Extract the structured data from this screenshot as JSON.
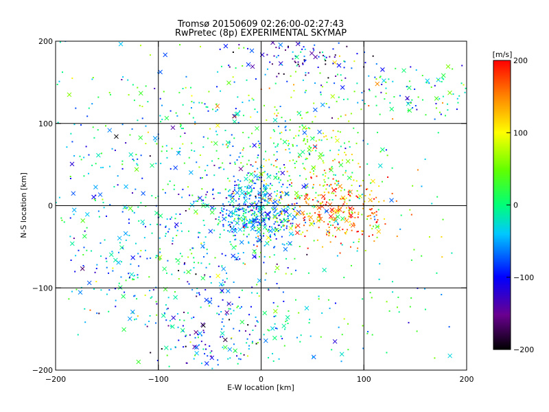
{
  "chart_data": {
    "type": "scatter",
    "title": "Tromsø 20150609 02:26:00-02:27:43",
    "subtitle": "RwPretec (8p) EXPERIMENTAL SKYMAP",
    "xlabel": "E-W location [km]",
    "ylabel": "N-S location [km]",
    "xlim": [
      -200,
      200
    ],
    "ylim": [
      -200,
      200
    ],
    "xticks": [
      -200,
      -100,
      0,
      100,
      200
    ],
    "yticks": [
      -200,
      -100,
      0,
      100,
      200
    ],
    "xtick_labels": [
      "−200",
      "−100",
      "0",
      "100",
      "200"
    ],
    "ytick_labels": [
      "−200",
      "−100",
      "0",
      "100",
      "200"
    ],
    "grid": true,
    "marker_types": [
      "dot",
      "cross"
    ],
    "colorbar": {
      "label": "[m/s]",
      "range": [
        -200,
        200
      ],
      "ticks": [
        -200,
        -100,
        0,
        100,
        200
      ],
      "tick_labels": [
        "−200",
        "−100",
        "0",
        "100",
        "200"
      ],
      "colormap": "rainbow (black–purple–blue–cyan–green–yellow–red)"
    },
    "point_clusters": [
      {
        "cx": -5,
        "cy": -5,
        "sx": 22,
        "sy": 22,
        "velocity_mean": -60,
        "velocity_spread": 45,
        "count": 450
      },
      {
        "cx": 75,
        "cy": -5,
        "sx": 25,
        "sy": 20,
        "velocity_mean": 150,
        "velocity_spread": 50,
        "count": 260
      },
      {
        "cx": 45,
        "cy": 60,
        "sx": 35,
        "sy": 45,
        "velocity_mean": 60,
        "velocity_spread": 60,
        "count": 220
      },
      {
        "cx": -70,
        "cy": 80,
        "sx": 80,
        "sy": 60,
        "velocity_mean": -20,
        "velocity_spread": 60,
        "count": 350
      },
      {
        "cx": -100,
        "cy": -60,
        "sx": 70,
        "sy": 50,
        "velocity_mean": -30,
        "velocity_spread": 50,
        "count": 300
      },
      {
        "cx": -45,
        "cy": -150,
        "sx": 30,
        "sy": 35,
        "velocity_mean": -80,
        "velocity_spread": 60,
        "count": 160
      },
      {
        "cx": 40,
        "cy": 180,
        "sx": 30,
        "sy": 15,
        "velocity_mean": -110,
        "velocity_spread": 60,
        "count": 110
      },
      {
        "cx": 150,
        "cy": 140,
        "sx": 35,
        "sy": 20,
        "velocity_mean": -30,
        "velocity_spread": 60,
        "count": 90
      },
      {
        "cx": 60,
        "cy": -130,
        "sx": 70,
        "sy": 50,
        "velocity_mean": 10,
        "velocity_spread": 50,
        "count": 90
      },
      {
        "cx": 0,
        "cy": 0,
        "sx": 130,
        "sy": 130,
        "velocity_mean": -10,
        "velocity_spread": 70,
        "count": 260
      }
    ]
  }
}
